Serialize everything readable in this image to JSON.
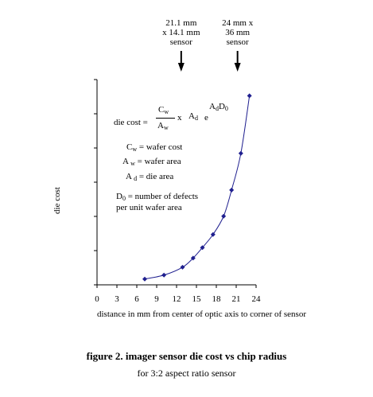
{
  "chart_data": {
    "type": "line",
    "title": "figure 2. imager sensor die cost vs chip radius",
    "subtitle": "for 3:2 aspect ratio sensor",
    "xlabel": "distance in mm from center of optic axis to corner of sensor",
    "ylabel": "die cost",
    "xlim": [
      0,
      24
    ],
    "xticks": [
      "0",
      "3",
      "6",
      "9",
      "12",
      "15",
      "18",
      "21",
      "24"
    ],
    "grid": false,
    "series": [
      {
        "x": [
          7.2,
          10.1,
          12.9,
          14.5,
          15.9,
          17.5,
          19.1,
          20.3,
          21.7,
          23.0
        ],
        "y": [
          0.2,
          0.5,
          1.1,
          1.8,
          2.6,
          3.6,
          5.0,
          7.0,
          9.8,
          14.2
        ],
        "color": "#1f1f8f"
      }
    ],
    "annotations": [
      {
        "lines": [
          "21.1 mm",
          "x 14.1 mm",
          "sensor"
        ],
        "x": 12.7
      },
      {
        "lines": [
          "24 mm x",
          "36 mm",
          "sensor"
        ],
        "x": 21.2
      }
    ],
    "legend": {
      "formula": {
        "prefix": "die cost =",
        "numerator": "C",
        "numerator_sub": "w",
        "denominator": "A",
        "denominator_sub": "w",
        "times": "x",
        "ad": "A",
        "ad_sub": "d",
        "exp_base": "e",
        "exp_a": "A",
        "exp_a_sub": "d",
        "exp_d": "D",
        "exp_d_sub": "0"
      },
      "cw": {
        "sym": "C",
        "sub": "w",
        "text": "= wafer cost"
      },
      "aw": {
        "sym": "A",
        "sub": "w",
        "text": "= wafer area"
      },
      "ad": {
        "sym": "A",
        "sub": "d",
        "text": "= die area"
      },
      "d0": {
        "sym": "D",
        "sub": "0",
        "text": "= number of defects",
        "text2": "per unit wafer area"
      }
    }
  }
}
